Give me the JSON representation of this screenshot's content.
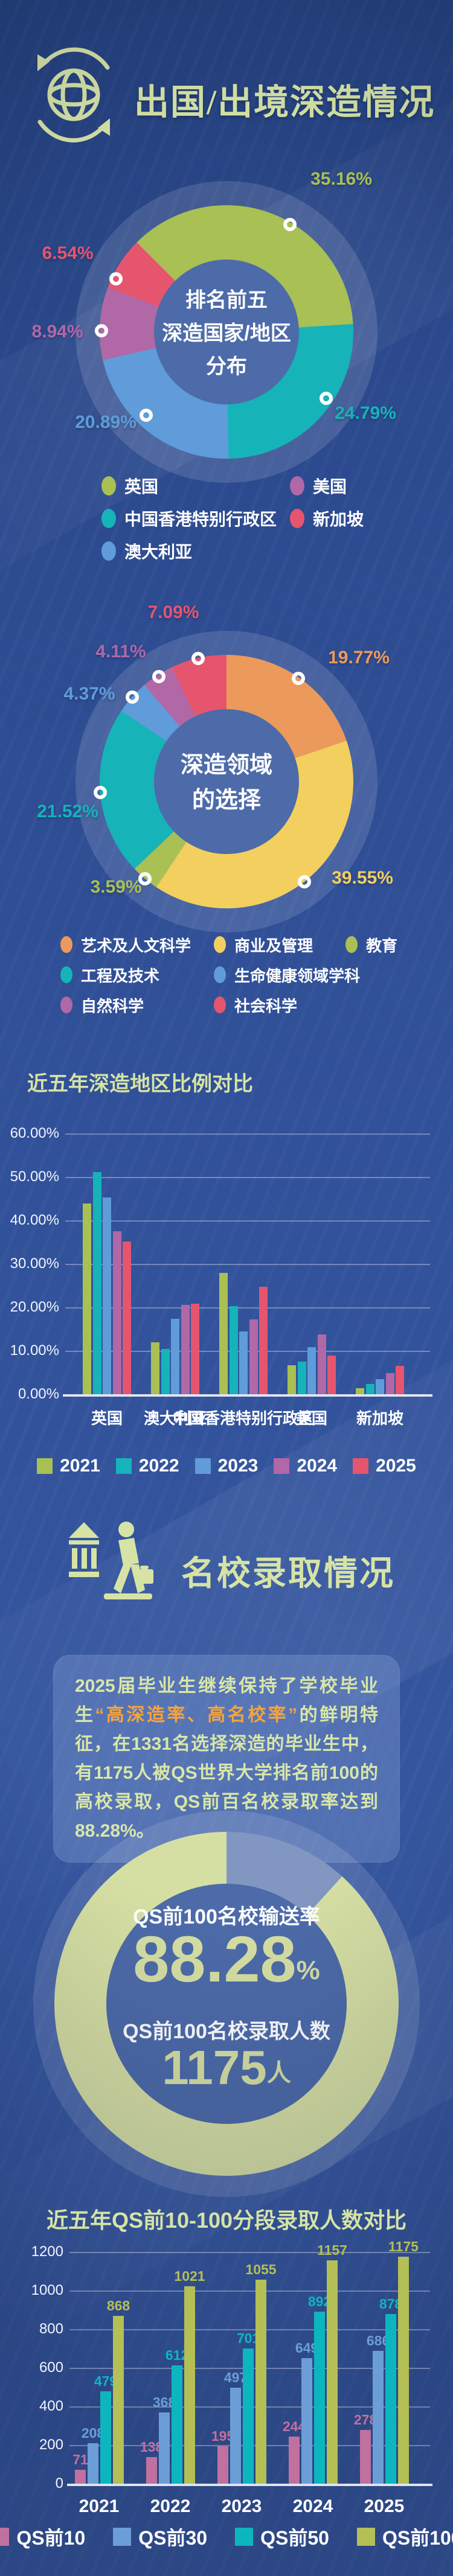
{
  "header": {
    "title": "出国/出境深造情况"
  },
  "palette": {
    "background_top": "#24407c",
    "background_bottom": "#3a5ca6",
    "title_green": "#d6e3a5",
    "white": "#ffffff",
    "highlight_orange": "#f5a43c",
    "inner_circle": "#4d6ba9",
    "gauge_fill": "#d6dfa3",
    "gauge_rest": "#8296c2"
  },
  "chart_data": [
    {
      "id": "top5-regions-donut",
      "type": "pie",
      "title": "排名前五深造国家/地区分布",
      "center_lines": [
        "排名前五",
        "深造国家/地区",
        "分布"
      ],
      "slices": [
        {
          "label": "英国",
          "value": 35.16,
          "color": "#a9c054"
        },
        {
          "label": "中国香港特别行政区",
          "value": 24.79,
          "color": "#16b3b9"
        },
        {
          "label": "澳大利亚",
          "value": 20.89,
          "color": "#5f9cd9"
        },
        {
          "label": "美国",
          "value": 8.94,
          "color": "#b068a7"
        },
        {
          "label": "新加坡",
          "value": 6.54,
          "color": "#e6556e"
        }
      ],
      "legend_order": [
        "英国",
        "美国",
        "中国香港特别行政区",
        "新加坡",
        "澳大利亚"
      ]
    },
    {
      "id": "fields-donut",
      "type": "pie",
      "title": "深造领域的选择",
      "center_lines": [
        "深造领域",
        "的选择"
      ],
      "slices": [
        {
          "label": "艺术及人文科学",
          "value": 19.77,
          "color": "#eb9a5b"
        },
        {
          "label": "商业及管理",
          "value": 39.55,
          "color": "#f2cf5f"
        },
        {
          "label": "教育",
          "value": 3.59,
          "color": "#a9c054"
        },
        {
          "label": "工程及技术",
          "value": 21.52,
          "color": "#16b3b9"
        },
        {
          "label": "生命健康领域学科",
          "value": 4.37,
          "color": "#5f9cd9"
        },
        {
          "label": "自然科学",
          "value": 4.11,
          "color": "#b068a7"
        },
        {
          "label": "社会科学",
          "value": 7.09,
          "color": "#e6556e"
        }
      ],
      "legend_order": [
        "艺术及人文科学",
        "商业及管理",
        "教育",
        "工程及技术",
        "生命健康领域学科",
        "自然科学",
        "社会科学"
      ]
    },
    {
      "id": "region-trend-bars",
      "type": "bar",
      "title": "近五年深造地区比例对比",
      "ylim": [
        0,
        60
      ],
      "grid": true,
      "legend_position": "bottom",
      "yticks": [
        "60.00%",
        "50.00%",
        "40.00%",
        "30.00%",
        "20.00%",
        "10.00%",
        "0.00%"
      ],
      "categories": [
        "英国",
        "澳大利亚",
        "中国香港特别行政区",
        "美国",
        "新加坡"
      ],
      "series": [
        {
          "name": "2021",
          "color": "#a9c054",
          "values": [
            43.9,
            12.0,
            27.9,
            6.6,
            1.4
          ]
        },
        {
          "name": "2022",
          "color": "#16b3b9",
          "values": [
            51.1,
            10.4,
            20.3,
            7.5,
            2.4
          ]
        },
        {
          "name": "2023",
          "color": "#5f9cd9",
          "values": [
            45.3,
            17.3,
            14.5,
            10.8,
            3.5
          ]
        },
        {
          "name": "2024",
          "color": "#b068a7",
          "values": [
            37.5,
            20.5,
            17.2,
            13.8,
            4.8
          ]
        },
        {
          "name": "2025",
          "color": "#e6556e",
          "values": [
            35.16,
            20.89,
            24.79,
            8.94,
            6.54
          ]
        }
      ]
    },
    {
      "id": "qs-trend-bars",
      "type": "bar",
      "title": "近五年QS前10-100分段录取人数对比",
      "ylim": [
        0,
        1200
      ],
      "grid": true,
      "legend_position": "bottom",
      "show_values": true,
      "yticks": [
        "1200",
        "1000",
        "800",
        "600",
        "400",
        "200",
        "0"
      ],
      "categories": [
        "2021",
        "2022",
        "2023",
        "2024",
        "2025"
      ],
      "series": [
        {
          "name": "QS前10",
          "color": "#c0719f",
          "values": [
            71,
            138,
            195,
            244,
            278
          ]
        },
        {
          "name": "QS前30",
          "color": "#6b9ed7",
          "values": [
            208,
            368,
            497,
            649,
            686
          ]
        },
        {
          "name": "QS前50",
          "color": "#0db6bf",
          "values": [
            479,
            612,
            701,
            892,
            878
          ]
        },
        {
          "name": "QS前100",
          "color": "#b4bf55",
          "values": [
            868,
            1021,
            1055,
            1157,
            1175
          ]
        }
      ]
    }
  ],
  "section2": {
    "title": "名校录取情况"
  },
  "card": {
    "t1": "2025届毕业生继续保持了学校毕业生",
    "hl": "“高深造率、高名校率”",
    "t2": "的鲜明特征，在1331名选择深造的毕业生中，有1175人被QS世界大学排名前100的高校录取，QS前百名校录取率达到88.28%。"
  },
  "gauge": {
    "percent": 88.28,
    "label1": "QS前100名校输送率",
    "value": "88.28",
    "unit": "%",
    "label2": "QS前100名校录取人数",
    "count": "1175",
    "count_unit": "人"
  }
}
